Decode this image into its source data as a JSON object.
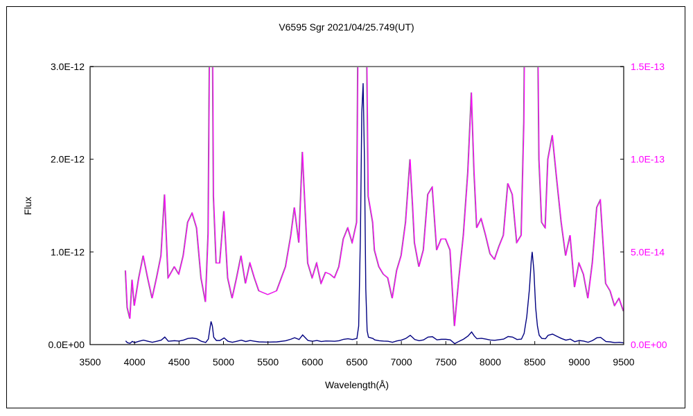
{
  "chart_data": {
    "type": "line",
    "title": "V6595 Sgr   2021/04/25.749(UT)",
    "xlabel": "Wavelength(Å)",
    "ylabel": "Flux",
    "xlim": [
      3500,
      9500
    ],
    "ylim_left": [
      0,
      3e-12
    ],
    "ylim_right": [
      0,
      1.5e-13
    ],
    "grid": false,
    "legend": "none",
    "x_ticks": [
      "3500",
      "4000",
      "4500",
      "5000",
      "5500",
      "6000",
      "6500",
      "7000",
      "7500",
      "8000",
      "8500",
      "9000",
      "9500"
    ],
    "y_left_ticks": [
      "0.0E+00",
      "1.0E-12",
      "2.0E-12",
      "3.0E-12"
    ],
    "y_right_ticks": [
      "0.0E+00",
      "5.0E-14",
      "1.0E-13",
      "1.5E-13"
    ],
    "colors": {
      "left_series": "#000080",
      "right_series": "#ff00ff",
      "right_axis": "#ff00ff",
      "frame": "#000000"
    },
    "series": [
      {
        "axis": "left",
        "color": "#000080"
      },
      {
        "axis": "right",
        "color": "#ff00ff"
      }
    ],
    "x": [
      3900,
      3920,
      3950,
      3975,
      4000,
      4050,
      4100,
      4150,
      4200,
      4250,
      4300,
      4340,
      4380,
      4450,
      4500,
      4550,
      4600,
      4650,
      4700,
      4750,
      4800,
      4830,
      4845,
      4860,
      4875,
      4890,
      4920,
      4960,
      5007,
      5050,
      5100,
      5150,
      5200,
      5250,
      5300,
      5350,
      5400,
      5500,
      5600,
      5700,
      5760,
      5800,
      5850,
      5890,
      5920,
      5950,
      6000,
      6050,
      6100,
      6150,
      6200,
      6250,
      6300,
      6350,
      6400,
      6450,
      6500,
      6520,
      6540,
      6555,
      6570,
      6585,
      6600,
      6615,
      6630,
      6680,
      6700,
      6750,
      6800,
      6850,
      6900,
      6950,
      7000,
      7050,
      7100,
      7130,
      7150,
      7200,
      7250,
      7300,
      7350,
      7400,
      7450,
      7500,
      7550,
      7600,
      7650,
      7700,
      7750,
      7790,
      7820,
      7850,
      7900,
      7950,
      8000,
      8050,
      8100,
      8150,
      8200,
      8250,
      8300,
      8350,
      8380,
      8410,
      8440,
      8460,
      8471,
      8490,
      8510,
      8530,
      8550,
      8580,
      8620,
      8650,
      8700,
      8750,
      8800,
      8850,
      8900,
      8950,
      9000,
      9050,
      9100,
      9150,
      9200,
      9240,
      9300,
      9350,
      9400,
      9450,
      9500
    ],
    "flux": [
      4e-14,
      2e-14,
      1.4e-14,
      3.5e-14,
      2.1e-14,
      3.6e-14,
      4.8e-14,
      3.6e-14,
      2.5e-14,
      3.6e-14,
      4.8e-14,
      8.1e-14,
      3.6e-14,
      4.2e-14,
      3.8e-14,
      4.8e-14,
      6.6e-14,
      7.1e-14,
      6.3e-14,
      3.6e-14,
      2.3e-14,
      6e-14,
      1.6e-13,
      2.5e-13,
      2e-13,
      8e-14,
      4.4e-14,
      4.4e-14,
      7.2e-14,
      3.6e-14,
      2.5e-14,
      3.6e-14,
      4.8e-14,
      3.3e-14,
      4.4e-14,
      3.6e-14,
      2.9e-14,
      2.7e-14,
      2.9e-14,
      4.2e-14,
      5.9e-14,
      7.4e-14,
      5.5e-14,
      1.04e-13,
      7.4e-14,
      4.4e-14,
      3.6e-14,
      4.4e-14,
      3.3e-14,
      3.9e-14,
      3.8e-14,
      3.6e-14,
      4.2e-14,
      5.7e-14,
      6.3e-14,
      5.5e-14,
      6.6e-14,
      2e-13,
      1.2e-12,
      2.5e-12,
      2.82e-12,
      2e-12,
      6e-13,
      1.5e-13,
      8e-14,
      6.6e-14,
      5.1e-14,
      4.2e-14,
      3.8e-14,
      3.6e-14,
      2.5e-14,
      4e-14,
      4.8e-14,
      6.6e-14,
      1e-13,
      7.4e-14,
      5.5e-14,
      4.2e-14,
      5.1e-14,
      8.1e-14,
      8.5e-14,
      5.1e-14,
      5.7e-14,
      5.7e-14,
      5.1e-14,
      1e-14,
      3.6e-14,
      5.9e-14,
      9.3e-14,
      1.36e-13,
      9.3e-14,
      6.3e-14,
      6.8e-14,
      5.9e-14,
      4.9e-14,
      4.6e-14,
      5.3e-14,
      5.9e-14,
      8.7e-14,
      8.1e-14,
      5.5e-14,
      5.9e-14,
      1.2e-13,
      3e-13,
      6e-13,
      9e-13,
      1e-12,
      8e-13,
      4e-13,
      2e-13,
      1e-13,
      6.6e-14,
      6.3e-14,
      1e-13,
      1.13e-13,
      8.9e-14,
      6.6e-14,
      4.8e-14,
      5.9e-14,
      3.1e-14,
      4.4e-14,
      3.8e-14,
      2.5e-14,
      4.4e-14,
      7.4e-14,
      7.8e-14,
      3.3e-14,
      2.9e-14,
      2.1e-14,
      2.5e-14,
      1.8e-14
    ]
  }
}
